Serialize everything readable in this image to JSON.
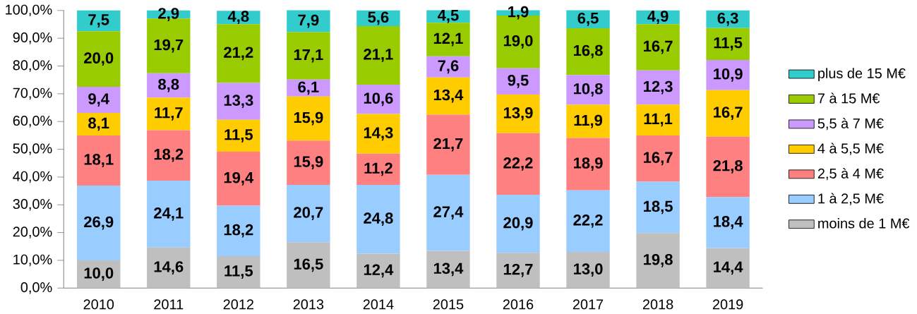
{
  "chart_data": {
    "type": "bar",
    "stacked": true,
    "legend": "right",
    "categories": [
      "2010",
      "2011",
      "2012",
      "2013",
      "2014",
      "2015",
      "2016",
      "2017",
      "2018",
      "2019"
    ],
    "ylim": [
      0,
      100.1
    ],
    "yticks": [
      {
        "value": 0,
        "label": "0,0%"
      },
      {
        "value": 10,
        "label": "10,0%"
      },
      {
        "value": 20,
        "label": "20,0%"
      },
      {
        "value": 30,
        "label": "30,0%"
      },
      {
        "value": 40,
        "label": "40,0%"
      },
      {
        "value": 50,
        "label": "50,0%"
      },
      {
        "value": 60,
        "label": "60,0%"
      },
      {
        "value": 70,
        "label": "70,0%"
      },
      {
        "value": 80,
        "label": "80,0%"
      },
      {
        "value": 90,
        "label": "90,0%"
      },
      {
        "value": 100,
        "label": "100,0%"
      }
    ],
    "series": [
      {
        "name": "moins de 1 M€",
        "color": "#bfbfbf",
        "values": [
          10.0,
          14.6,
          11.5,
          16.5,
          12.4,
          13.4,
          12.7,
          13.0,
          19.8,
          14.4
        ],
        "value_labels": [
          "10,0",
          "14,6",
          "11,5",
          "16,5",
          "12,4",
          "13,4",
          "12,7",
          "13,0",
          "19,8",
          "14,4"
        ]
      },
      {
        "name": "1 à 2,5 M€",
        "color": "#99ccff",
        "values": [
          26.9,
          24.1,
          18.2,
          20.7,
          24.8,
          27.4,
          20.9,
          22.2,
          18.5,
          18.4
        ],
        "value_labels": [
          "26,9",
          "24,1",
          "18,2",
          "20,7",
          "24,8",
          "27,4",
          "20,9",
          "22,2",
          "18,5",
          "18,4"
        ]
      },
      {
        "name": "2,5 à 4 M€",
        "color": "#ff8080",
        "values": [
          18.1,
          18.2,
          19.4,
          15.9,
          11.2,
          21.7,
          22.2,
          18.9,
          16.7,
          21.8
        ],
        "value_labels": [
          "18,1",
          "18,2",
          "19,4",
          "15,9",
          "11,2",
          "21,7",
          "22,2",
          "18,9",
          "16,7",
          "21,8"
        ]
      },
      {
        "name": "4 à 5,5 M€",
        "color": "#ffcc00",
        "values": [
          8.1,
          11.7,
          11.5,
          15.9,
          14.3,
          13.4,
          13.9,
          11.9,
          11.1,
          16.7
        ],
        "value_labels": [
          "8,1",
          "11,7",
          "11,5",
          "15,9",
          "14,3",
          "13,4",
          "13,9",
          "11,9",
          "11,1",
          "16,7"
        ]
      },
      {
        "name": "5,5 à 7 M€",
        "color": "#cc99ff",
        "values": [
          9.4,
          8.8,
          13.3,
          6.1,
          10.6,
          7.6,
          9.5,
          10.8,
          12.3,
          10.9
        ],
        "value_labels": [
          "9,4",
          "8,8",
          "13,3",
          "6,1",
          "10,6",
          "7,6",
          "9,5",
          "10,8",
          "12,3",
          "10,9"
        ]
      },
      {
        "name": "7 à 15 M€",
        "color": "#99cc00",
        "values": [
          20.0,
          19.7,
          21.2,
          17.1,
          21.1,
          12.1,
          19.0,
          16.8,
          16.7,
          11.5
        ],
        "value_labels": [
          "20,0",
          "19,7",
          "21,2",
          "17,1",
          "21,1",
          "12,1",
          "19,0",
          "16,8",
          "16,7",
          "11,5"
        ]
      },
      {
        "name": "plus de 15 M€",
        "color": "#33cccc",
        "values": [
          7.5,
          2.9,
          4.8,
          7.9,
          5.6,
          4.5,
          1.9,
          6.5,
          4.9,
          6.3
        ],
        "value_labels": [
          "7,5",
          "2,9",
          "4,8",
          "7,9",
          "5,6",
          "4,5",
          "1,9",
          "6,5",
          "4,9",
          "6,3"
        ]
      }
    ]
  }
}
